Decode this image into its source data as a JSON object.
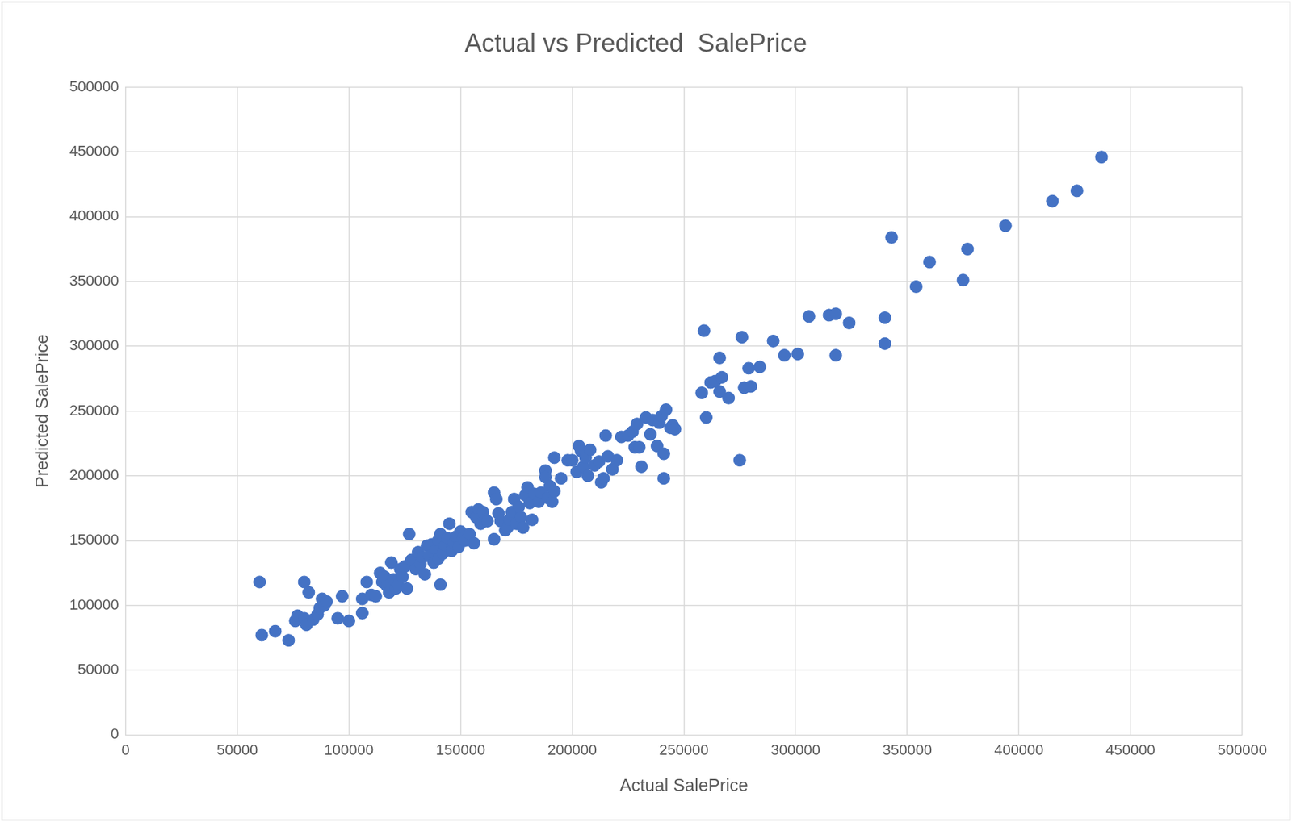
{
  "chart_data": {
    "type": "scatter",
    "title": "Actual vs Predicted  SalePrice",
    "x_label": "Actual SalePrice",
    "y_label": "Predicted SalePrice",
    "color": "#4472c4",
    "marker": "circle",
    "x": [
      60000,
      61000,
      67000,
      73000,
      76000,
      77000,
      80000,
      80000,
      81000,
      82000,
      84000,
      86000,
      87000,
      88000,
      89000,
      90000,
      95000,
      97000,
      100000,
      106000,
      106000,
      108000,
      110000,
      112000,
      114000,
      115000,
      116000,
      117000,
      118000,
      119000,
      120000,
      121000,
      122000,
      123000,
      124000,
      125000,
      126000,
      127000,
      128000,
      130000,
      131000,
      132000,
      133000,
      134000,
      135000,
      136000,
      137000,
      138000,
      139000,
      140000,
      140000,
      141000,
      141000,
      142000,
      143000,
      144000,
      145000,
      146000,
      147000,
      148000,
      149000,
      150000,
      151000,
      152000,
      154000,
      155000,
      156000,
      157000,
      158000,
      159000,
      160000,
      161000,
      162000,
      165000,
      165000,
      166000,
      167000,
      168000,
      170000,
      171000,
      172000,
      173000,
      174000,
      175000,
      176000,
      177000,
      178000,
      179000,
      180000,
      181000,
      182000,
      183000,
      185000,
      186000,
      188000,
      188000,
      189000,
      190000,
      191000,
      192000,
      192000,
      195000,
      198000,
      200000,
      202000,
      203000,
      204000,
      205000,
      206000,
      207000,
      208000,
      210000,
      212000,
      213000,
      214000,
      215000,
      216000,
      218000,
      220000,
      222000,
      225000,
      227000,
      228000,
      229000,
      230000,
      231000,
      233000,
      235000,
      236000,
      238000,
      239000,
      240000,
      241000,
      241000,
      242000,
      244000,
      245000,
      246000,
      258000,
      259000,
      260000,
      262000,
      264000,
      266000,
      266000,
      267000,
      270000,
      275000,
      276000,
      277000,
      279000,
      280000,
      284000,
      290000,
      295000,
      301000,
      306000,
      315000,
      318000,
      318000,
      324000,
      340000,
      340000,
      343000,
      354000,
      360000,
      375000,
      377000,
      394000,
      415000,
      426000,
      437000
    ],
    "values": [
      118000,
      77000,
      80000,
      73000,
      88000,
      92000,
      118000,
      90000,
      85000,
      110000,
      89000,
      93000,
      98000,
      105000,
      100000,
      103000,
      90000,
      107000,
      88000,
      94000,
      105000,
      118000,
      108000,
      107000,
      125000,
      118000,
      122000,
      115000,
      110000,
      133000,
      120000,
      113000,
      116000,
      128000,
      122000,
      130000,
      113000,
      155000,
      135000,
      128000,
      141000,
      132000,
      137000,
      124000,
      146000,
      138000,
      147000,
      133000,
      143000,
      150000,
      136000,
      155000,
      116000,
      140000,
      146000,
      152000,
      163000,
      142000,
      148000,
      153000,
      145000,
      157000,
      152000,
      150000,
      155000,
      172000,
      148000,
      168000,
      174000,
      163000,
      172000,
      166000,
      165000,
      187000,
      151000,
      182000,
      171000,
      165000,
      158000,
      160000,
      166000,
      172000,
      182000,
      163000,
      176000,
      168000,
      160000,
      185000,
      191000,
      179000,
      166000,
      186000,
      180000,
      187000,
      204000,
      199000,
      183000,
      192000,
      180000,
      214000,
      188000,
      198000,
      212000,
      212000,
      203000,
      223000,
      219000,
      207000,
      214000,
      200000,
      220000,
      208000,
      211000,
      195000,
      198000,
      231000,
      215000,
      205000,
      212000,
      230000,
      231000,
      234000,
      222000,
      240000,
      222000,
      207000,
      245000,
      232000,
      243000,
      223000,
      241000,
      246000,
      217000,
      198000,
      251000,
      237000,
      239000,
      236000,
      264000,
      312000,
      245000,
      272000,
      273000,
      265000,
      291000,
      276000,
      260000,
      212000,
      307000,
      268000,
      283000,
      269000,
      284000,
      304000,
      293000,
      294000,
      323000,
      324000,
      325000,
      293000,
      318000,
      322000,
      302000,
      384000,
      346000,
      365000,
      351000,
      375000,
      393000,
      412000,
      420000,
      446000
    ],
    "xlim": [
      0,
      500000
    ],
    "xticks": [
      0,
      50000,
      100000,
      150000,
      200000,
      250000,
      300000,
      350000,
      400000,
      450000,
      500000
    ],
    "ylim": [
      0,
      500000
    ],
    "yticks": [
      0,
      50000,
      100000,
      150000,
      200000,
      250000,
      300000,
      350000,
      400000,
      450000,
      500000
    ],
    "grid": true
  }
}
